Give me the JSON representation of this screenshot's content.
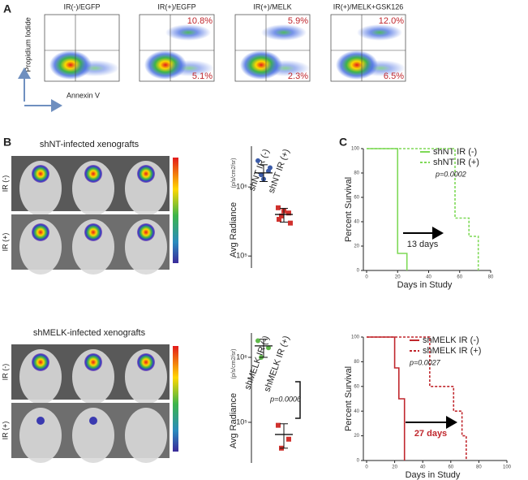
{
  "panel_a": {
    "label": "A",
    "y_label": "Propidium Iodide",
    "x_label": "Annexin V",
    "plots": [
      {
        "title": "IR(-)/EGFP"
      },
      {
        "title": "IR(+)/EGFP",
        "upper": "10.8%",
        "lower": "5.1%"
      },
      {
        "title": "IR(+)/MELK",
        "upper": "5.9%",
        "lower": "2.3%"
      },
      {
        "title": "IR(+)/MELK+GSK126",
        "upper": "12.0%",
        "lower": "6.5%"
      }
    ]
  },
  "panel_b": {
    "label": "B",
    "groups": [
      {
        "title": "shNT-infected xenografts",
        "rows": [
          "IR (-)",
          "IR (+)"
        ],
        "y_label": "Avg Radiance",
        "y_unit": "(p/s/cm2/sr)",
        "categories": [
          "shNT IR (-)",
          "shNT IR (+)"
        ],
        "ylim": [
          67000,
          3900000
        ],
        "log": true,
        "yticks": [
          {
            "value": 100000,
            "label": "10⁵"
          },
          {
            "value": 1000000,
            "label": "10⁶"
          }
        ],
        "colors": [
          "#3b5ba8",
          "#d0312d"
        ],
        "values": [
          [
            2400000,
            1700000,
            1500000,
            1900000,
            1300000
          ],
          [
            500000,
            420000,
            380000,
            300000,
            450000,
            340000
          ]
        ],
        "means": [
          1600000,
          400000
        ],
        "ranges": [
          [
            1200000,
            2100000
          ],
          [
            310000,
            490000
          ]
        ]
      },
      {
        "title": "shMELK-infected xenografts",
        "rows": [
          "IR (-)",
          "IR (+)"
        ],
        "y_label": "Avg Radiance",
        "y_unit": "(p/s/cm2/sr)",
        "categories": [
          "shMELK IR (-)",
          "shMELK IR (+)"
        ],
        "ylim": [
          23700,
          2370000
        ],
        "log": true,
        "yticks": [
          {
            "value": 100000,
            "label": "10⁵"
          },
          {
            "value": 1000000,
            "label": "10⁶"
          }
        ],
        "colors": [
          "#5fb84a",
          "#d0312d"
        ],
        "values": [
          [
            1800000,
            1400000,
            1000000
          ],
          [
            90000,
            55000,
            40000
          ]
        ],
        "means": [
          1500000,
          65000
        ],
        "ranges": [
          [
            1000000,
            1900000
          ],
          [
            40000,
            95000
          ]
        ],
        "p_value": "p=0.0006"
      }
    ]
  },
  "panel_c": {
    "label": "C",
    "charts": [
      {
        "type": "line",
        "y_label": "Percent Survival",
        "x_label": "Days in Study",
        "xlim": [
          0,
          80
        ],
        "xticks": [
          0,
          20,
          40,
          60,
          80
        ],
        "ylim": [
          0,
          100
        ],
        "yticks": [
          0,
          20,
          40,
          60,
          80,
          100
        ],
        "series": [
          {
            "name": "shNT IR (-)",
            "color": "#7ed957",
            "dash": false,
            "x": [
              0,
              20,
              20,
              26,
              26
            ],
            "values": [
              100,
              100,
              14,
              14,
              0
            ]
          },
          {
            "name": "shNT IR (+)",
            "color": "#7ed957",
            "dash": true,
            "x": [
              0,
              57,
              57,
              66,
              66,
              72,
              72
            ],
            "values": [
              100,
              100,
              43,
              43,
              28,
              28,
              0
            ]
          }
        ],
        "p_value": "p=0.0002",
        "annotation": "13 days"
      },
      {
        "type": "line",
        "y_label": "Percent Survival",
        "x_label": "Days in Study",
        "xlim": [
          0,
          100
        ],
        "xticks": [
          0,
          20,
          40,
          60,
          80,
          100
        ],
        "ylim": [
          0,
          100
        ],
        "yticks": [
          0,
          20,
          40,
          60,
          80,
          100
        ],
        "series": [
          {
            "name": "shMELK IR (-)",
            "color": "#c0272d",
            "dash": false,
            "x": [
              0,
              20,
              20,
              23,
              23,
              27,
              27
            ],
            "values": [
              100,
              100,
              75,
              75,
              50,
              50,
              0
            ]
          },
          {
            "name": "shMELK IR (+)",
            "color": "#c0272d",
            "dash": true,
            "x": [
              0,
              45,
              45,
              62,
              62,
              68,
              68,
              71,
              71
            ],
            "values": [
              100,
              100,
              60,
              60,
              40,
              40,
              20,
              20,
              0
            ]
          }
        ],
        "p_value": "p=0.0027",
        "annotation": "27 days"
      }
    ]
  }
}
